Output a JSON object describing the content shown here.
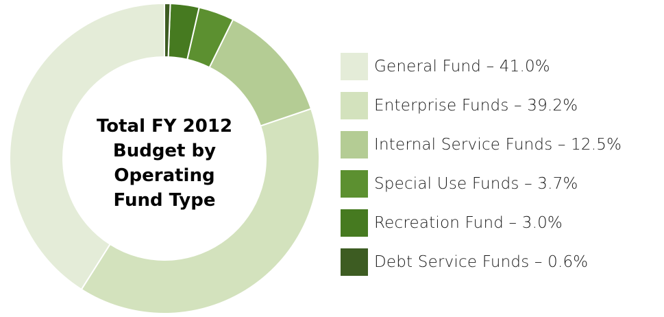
{
  "chart_data": {
    "type": "pie",
    "variant": "donut",
    "title_lines": [
      "Total FY 2012",
      "Budget by",
      "Operating",
      "Fund Type"
    ],
    "legend_placement": "right",
    "slices": [
      {
        "name": "General Fund",
        "value": 41.0,
        "label": "General Fund – 41.0%",
        "color": "#e4ecd8"
      },
      {
        "name": "Enterprise Funds",
        "value": 39.2,
        "label": "Enterprise Funds – 39.2%",
        "color": "#d3e2bd"
      },
      {
        "name": "Internal Service Funds",
        "value": 12.5,
        "label": "Internal Service Funds – 12.5%",
        "color": "#b4cc94"
      },
      {
        "name": "Special Use Funds",
        "value": 3.7,
        "label": "Special Use Funds – 3.7%",
        "color": "#5c9030"
      },
      {
        "name": "Recreation Fund",
        "value": 3.0,
        "label": "Recreation Fund – 3.0%",
        "color": "#467a20"
      },
      {
        "name": "Debt Service Funds",
        "value": 0.6,
        "label": "Debt Service Funds – 0.6%",
        "color": "#3d5c22"
      }
    ]
  }
}
